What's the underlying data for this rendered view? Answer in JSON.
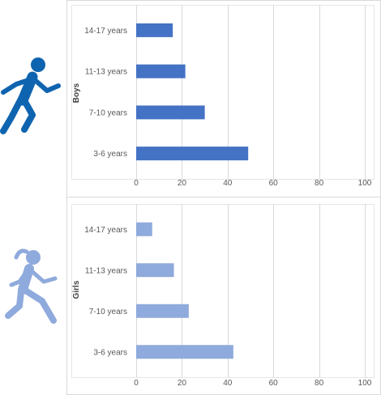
{
  "chart_data": [
    {
      "type": "bar",
      "orientation": "horizontal",
      "panel_label": "Boys",
      "categories": [
        "14-17 years",
        "11-13 years",
        "7-10 years",
        "3-6 years"
      ],
      "values": [
        16,
        21.5,
        30,
        49
      ],
      "xlim": [
        0,
        100
      ],
      "x_ticks": [
        0,
        20,
        40,
        60,
        80,
        100
      ],
      "grid": "vertical",
      "color": "#4472C4",
      "icon": "running-boy-icon"
    },
    {
      "type": "bar",
      "orientation": "horizontal",
      "panel_label": "Girls",
      "categories": [
        "14-17 years",
        "11-13 years",
        "7-10 years",
        "3-6 years"
      ],
      "values": [
        7,
        16.5,
        23,
        42.5
      ],
      "xlim": [
        0,
        100
      ],
      "x_ticks": [
        0,
        20,
        40,
        60,
        80,
        100
      ],
      "grid": "vertical",
      "color": "#8FAADC",
      "icon": "running-girl-icon"
    }
  ]
}
